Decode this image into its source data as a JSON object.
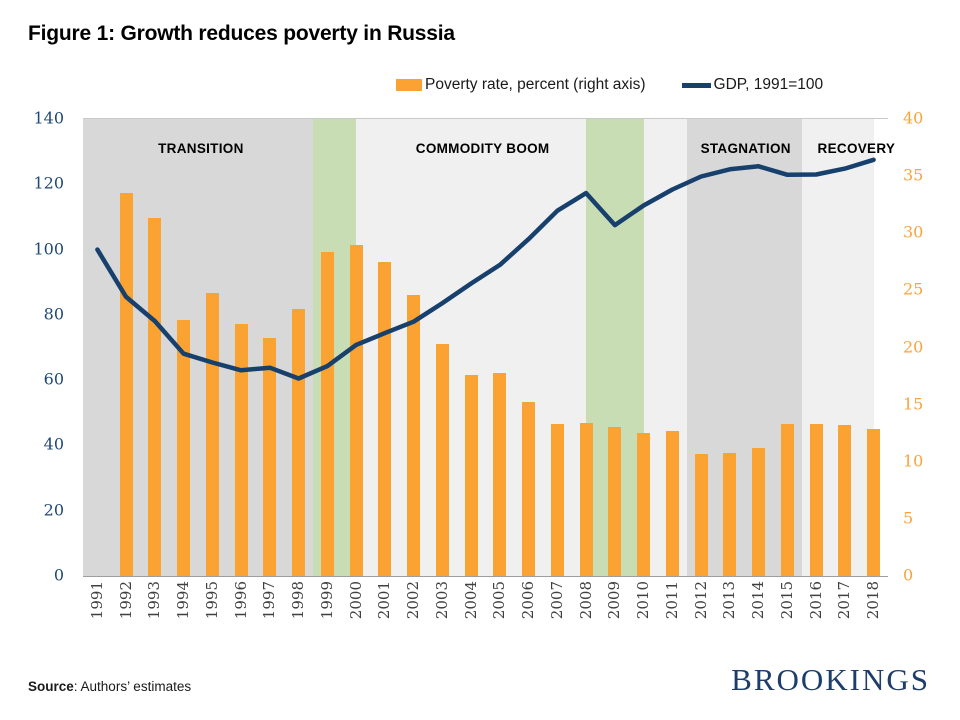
{
  "header": {
    "title": "Figure 1: Growth reduces poverty in Russia"
  },
  "legend": {
    "bar_label": "Poverty rate, percent (right axis)",
    "line_label": "GDP, 1991=100"
  },
  "chart_data": {
    "type": "combo",
    "categories": [
      1991,
      1992,
      1993,
      1994,
      1995,
      1996,
      1997,
      1998,
      1999,
      2000,
      2001,
      2002,
      2003,
      2004,
      2005,
      2006,
      2007,
      2008,
      2009,
      2010,
      2011,
      2012,
      2013,
      2014,
      2015,
      2016,
      2017,
      2018
    ],
    "series": [
      {
        "name": "Poverty rate, percent (right axis)",
        "type": "bar",
        "axis": "right",
        "color": "#FAA332",
        "values": [
          null,
          33.5,
          31.3,
          22.4,
          24.8,
          22.1,
          20.8,
          23.4,
          28.4,
          29.0,
          27.5,
          24.6,
          20.3,
          17.6,
          17.8,
          15.2,
          13.3,
          13.4,
          13.0,
          12.5,
          12.7,
          10.7,
          10.8,
          11.2,
          13.3,
          13.3,
          13.2,
          12.9
        ]
      },
      {
        "name": "GDP, 1991=100",
        "type": "line",
        "axis": "left",
        "color": "#17406D",
        "values": [
          100,
          85.5,
          78.1,
          68.1,
          65.4,
          63.0,
          63.8,
          60.5,
          64.3,
          70.8,
          74.4,
          77.9,
          83.6,
          89.6,
          95.3,
          103.2,
          111.9,
          117.3,
          107.5,
          113.5,
          118.4,
          122.4,
          124.6,
          125.5,
          122.9,
          123.0,
          124.8,
          127.5
        ]
      }
    ],
    "left_axis": {
      "min": 0,
      "max": 140,
      "tick_step": 20,
      "ticks": [
        0,
        20,
        40,
        60,
        80,
        100,
        120,
        140
      ],
      "color": "#1F4874"
    },
    "right_axis": {
      "min": 0,
      "max": 40,
      "tick_step": 5,
      "ticks": [
        0,
        5,
        10,
        15,
        20,
        25,
        30,
        35,
        40
      ],
      "color": "#F9A33B"
    },
    "bands": [
      {
        "name": "transition",
        "start": 0,
        "end": 8,
        "color": "#D8D8D8",
        "label": "TRANSITION",
        "label_slot": 4.1
      },
      {
        "name": "crisis-1999-2000",
        "start": 8,
        "end": 9.5,
        "color": "#C9DDB5",
        "label": null
      },
      {
        "name": "commodity-boom",
        "start": 9.5,
        "end": 17.5,
        "color": "#F0F0F0",
        "label": "COMMODITY BOOM",
        "label_slot": 13.9
      },
      {
        "name": "crisis-2008-2010",
        "start": 17.5,
        "end": 19.5,
        "color": "#C9DDB5",
        "label": null
      },
      {
        "name": "interim",
        "start": 19.5,
        "end": 21,
        "color": "#F0F0F0",
        "label": null
      },
      {
        "name": "stagnation",
        "start": 21,
        "end": 25,
        "color": "#D8D8D8",
        "label": "STAGNATION",
        "label_slot": 23.05
      },
      {
        "name": "recovery",
        "start": 25,
        "end": 27.5,
        "color": "#F0F0F0",
        "label": "RECOVERY",
        "label_slot": 26.9
      }
    ],
    "grid": "off",
    "legend_position": "top",
    "title": "Figure 1: Growth reduces poverty in Russia"
  },
  "footer": {
    "source_prefix": "Source",
    "source_rest": ": Authors’ estimates",
    "logo_text": "BROOKINGS"
  }
}
